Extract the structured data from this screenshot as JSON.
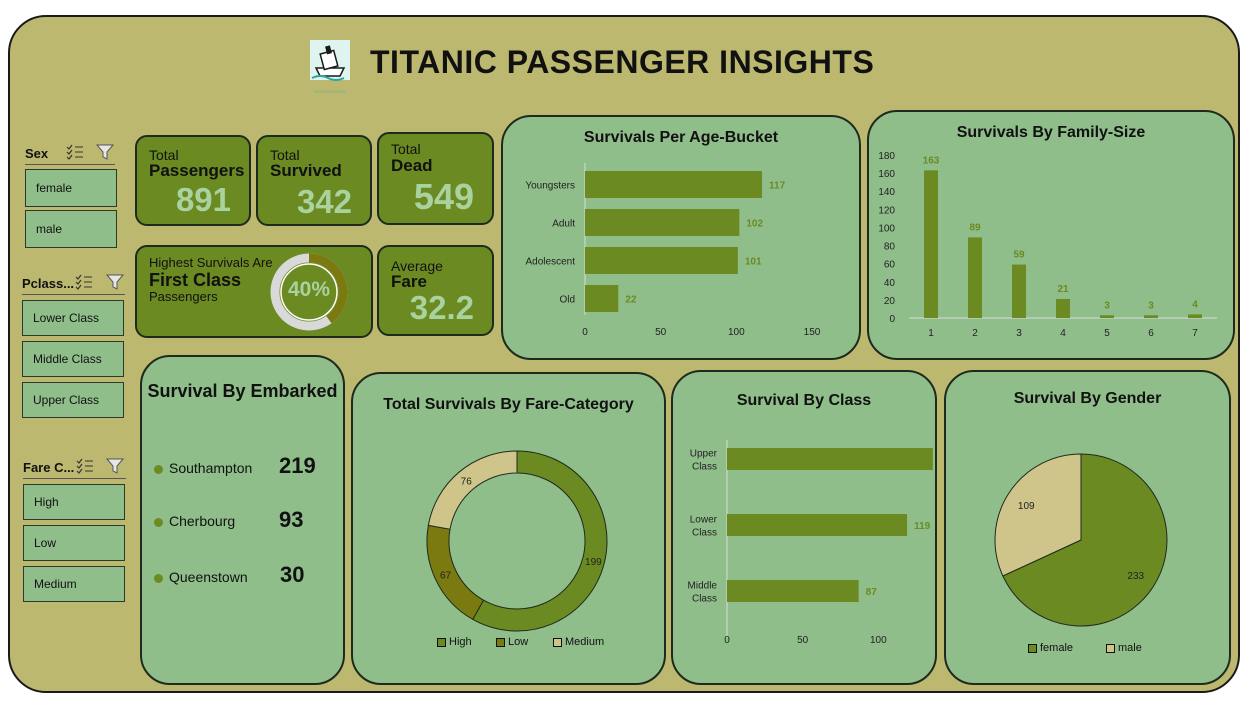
{
  "header": {
    "title": "TITANIC PASSENGER INSIGHTS"
  },
  "slicers": {
    "sex": {
      "title": "Sex",
      "items": [
        "female",
        "male"
      ]
    },
    "pclass": {
      "title": "Pclass...",
      "items": [
        "Lower Class",
        "Middle Class",
        "Upper Class"
      ]
    },
    "fare": {
      "title": "Fare C...",
      "items": [
        "High",
        "Low",
        "Medium"
      ]
    }
  },
  "kpis": {
    "total_passengers": {
      "small": "Total",
      "big": "Passengers",
      "value": "891"
    },
    "total_survived": {
      "small": "Total",
      "big": "Survived",
      "value": "342"
    },
    "total_dead": {
      "small": "Total",
      "big": "Dead",
      "value": "549"
    },
    "highest": {
      "line1": "Highest Survivals Are",
      "line2": "First Class",
      "line3": "Passengers",
      "percent": "40%",
      "percent_value": 0.4
    },
    "avg_fare": {
      "small": "Average",
      "big": "Fare",
      "value": "32.2"
    }
  },
  "colors": {
    "dark_green": "#6b8a22",
    "olive": "#7a7a10",
    "tan": "#cfc48a",
    "panel": "#8fbe8a",
    "frame": "#bcb86f"
  },
  "embarked": {
    "title": "Survival By Embarked",
    "rows": [
      {
        "label": "Southampton",
        "value": "219"
      },
      {
        "label": "Cherbourg",
        "value": "93"
      },
      {
        "label": "Queenstown",
        "value": "30"
      }
    ]
  },
  "chart_data": [
    {
      "type": "bar",
      "title": "Survivals Per Age-Bucket",
      "orientation": "horizontal",
      "categories": [
        "Youngsters",
        "Adult",
        "Adolescent",
        "Old"
      ],
      "values": [
        117,
        102,
        101,
        22
      ],
      "ticks": [
        "0",
        "50",
        "100",
        "150"
      ],
      "xlim": [
        0,
        150
      ]
    },
    {
      "type": "bar",
      "title": "Survivals By Family-Size",
      "categories": [
        "1",
        "2",
        "3",
        "4",
        "5",
        "6",
        "7"
      ],
      "values": [
        163,
        89,
        59,
        21,
        3,
        3,
        4
      ],
      "ticks": [
        "0",
        "20",
        "40",
        "60",
        "80",
        "100",
        "120",
        "140",
        "160",
        "180"
      ],
      "ylim": [
        0,
        180
      ]
    },
    {
      "type": "pie",
      "donut": true,
      "title": "Total Survivals By Fare-Category",
      "categories": [
        "High",
        "Low",
        "Medium"
      ],
      "values": [
        199,
        67,
        76
      ],
      "legend": "bottom"
    },
    {
      "type": "bar",
      "title": "Survival By Class",
      "orientation": "horizontal",
      "categories": [
        "Upper Class",
        "Lower Class",
        "Middle Class"
      ],
      "values": [
        136,
        119,
        87
      ],
      "ticks": [
        "0",
        "50",
        "100",
        "150"
      ],
      "xlim": [
        0,
        150
      ]
    },
    {
      "type": "pie",
      "title": "Survival By Gender",
      "categories": [
        "female",
        "male"
      ],
      "values": [
        233,
        109
      ],
      "legend": "bottom"
    }
  ]
}
